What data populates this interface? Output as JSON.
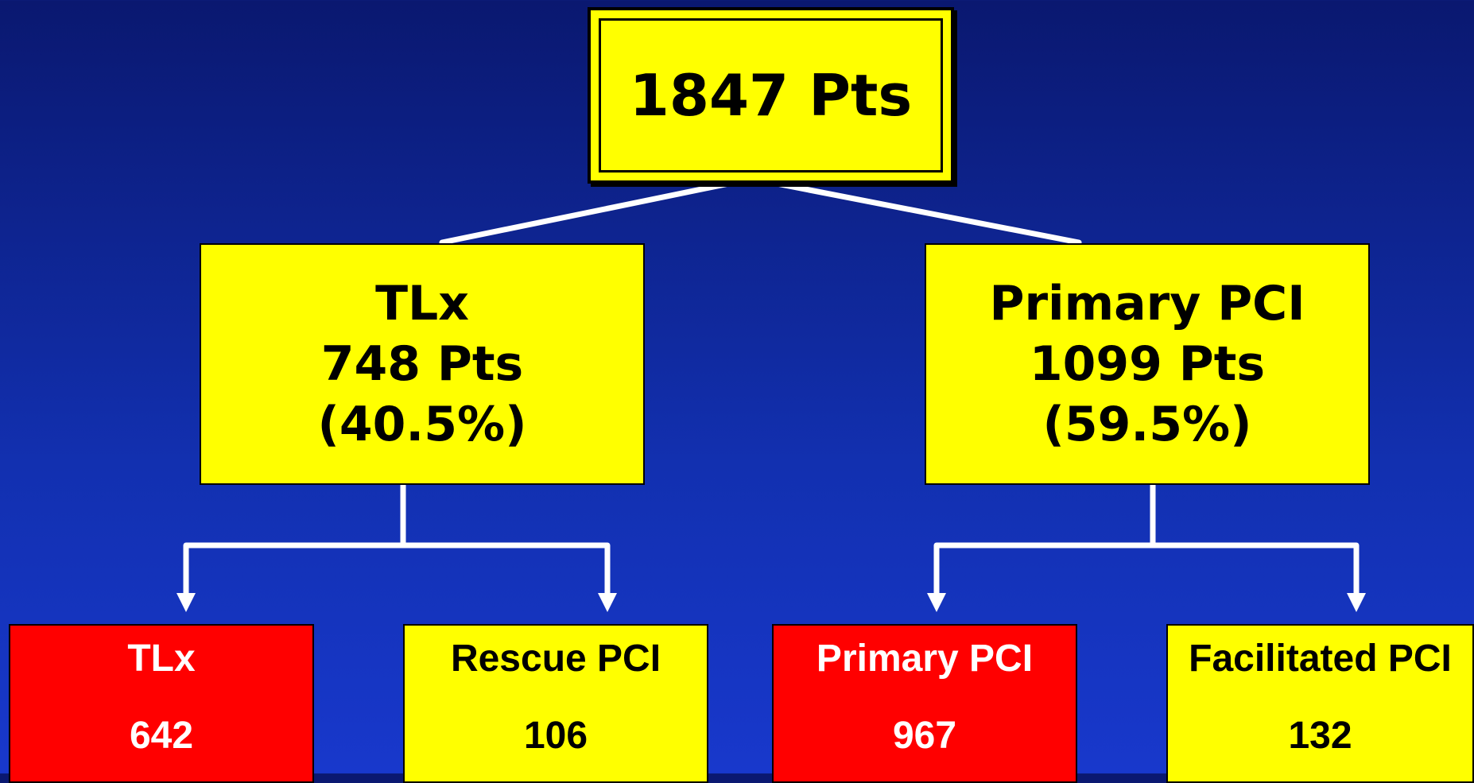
{
  "root": {
    "label": "1847 Pts"
  },
  "branches": [
    {
      "lines": [
        "TLx",
        "748 Pts",
        "(40.5%)"
      ]
    },
    {
      "lines": [
        "Primary PCI",
        "1099 Pts",
        "(59.5%)"
      ]
    }
  ],
  "leaves": [
    {
      "title": "TLx",
      "value": "642"
    },
    {
      "title": "Rescue PCI",
      "value": "106"
    },
    {
      "title": "Primary PCI",
      "value": "967"
    },
    {
      "title": "Facilitated PCI",
      "value": "132"
    }
  ]
}
